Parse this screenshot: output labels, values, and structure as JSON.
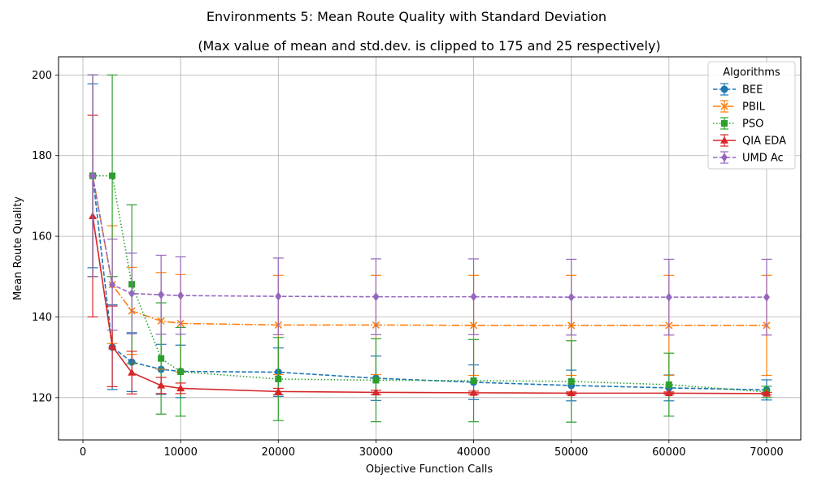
{
  "chart_data": {
    "type": "line",
    "suptitle": "Environments 5: Mean Route Quality with Standard Deviation",
    "title": "(Max value of mean and std.dev. is clipped to 175 and 25 respectively)",
    "xlabel": "Objective Function Calls",
    "ylabel": "Mean Route Quality",
    "xlim": [
      -2500,
      73500
    ],
    "ylim": [
      109.5,
      204.5
    ],
    "xticks": [
      0,
      10000,
      20000,
      30000,
      40000,
      50000,
      60000,
      70000
    ],
    "yticks": [
      120,
      140,
      160,
      180,
      200
    ],
    "grid": true,
    "legend_title": "Algorithms",
    "legend_position": "top-right",
    "x": [
      1000,
      3000,
      5000,
      8000,
      10000,
      20000,
      30000,
      40000,
      50000,
      60000,
      70000
    ],
    "series": [
      {
        "name": "BEE",
        "color": "#1f77b4",
        "marker": "circle",
        "linestyle": "dashed",
        "values": [
          175,
          132.5,
          128.8,
          127.0,
          126.5,
          126.3,
          124.8,
          123.8,
          123.0,
          122.4,
          121.9
        ],
        "std": [
          22.8,
          10.5,
          7.3,
          6.2,
          6.5,
          6.0,
          5.5,
          4.3,
          3.8,
          3.2,
          2.5
        ]
      },
      {
        "name": "PBIL",
        "color": "#ff7f0e",
        "marker": "x",
        "linestyle": "dashdot",
        "values": [
          175,
          148.0,
          141.5,
          139.0,
          138.4,
          138.0,
          138.0,
          137.9,
          137.9,
          137.9,
          137.9
        ],
        "std": [
          25,
          14.6,
          10.8,
          12.0,
          12.1,
          12.3,
          12.3,
          12.4,
          12.4,
          12.4,
          12.4
        ]
      },
      {
        "name": "PSO",
        "color": "#2ca02c",
        "marker": "square",
        "linestyle": "dotted",
        "values": [
          175,
          175,
          148.1,
          129.7,
          126.4,
          124.6,
          124.3,
          124.2,
          124.0,
          123.2,
          121.4
        ],
        "std": [
          25,
          25,
          19.7,
          13.8,
          11.0,
          10.3,
          10.3,
          10.2,
          10.1,
          7.8,
          1.4
        ]
      },
      {
        "name": "QIA EDA",
        "color": "#d62728",
        "marker": "triangle",
        "linestyle": "solid",
        "values": [
          165,
          132.7,
          126.2,
          123.0,
          122.3,
          121.5,
          121.3,
          121.2,
          121.1,
          121.1,
          121.0
        ],
        "std": [
          25,
          10.0,
          5.3,
          2.0,
          1.3,
          0.8,
          0.5,
          0.4,
          0.3,
          0.3,
          0.3
        ]
      },
      {
        "name": "UMD Ac",
        "color": "#9467bd",
        "marker": "diamond",
        "linestyle": "dashed",
        "values": [
          175,
          148.0,
          145.8,
          145.5,
          145.3,
          145.1,
          145.0,
          145.0,
          144.9,
          144.9,
          144.9
        ],
        "std": [
          25,
          11.3,
          10.0,
          9.8,
          9.6,
          9.5,
          9.4,
          9.4,
          9.4,
          9.4,
          9.4
        ]
      }
    ]
  }
}
